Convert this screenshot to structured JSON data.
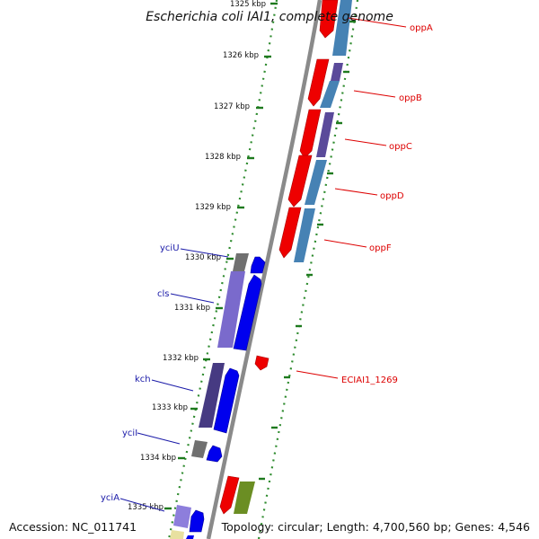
{
  "title": "Escherichia coli IAI1, complete genome",
  "accession": "Accession: NC_011741",
  "topology": "Topology: circular; Length: 4,700,560 bp; Genes: 4,546",
  "ticks": [
    "1325 kbp",
    "1326 kbp",
    "1327 kbp",
    "1328 kbp",
    "1329 kbp",
    "1330 kbp",
    "1331 kbp",
    "1332 kbp",
    "1333 kbp",
    "1334 kbp",
    "1335 kbp"
  ],
  "genes_right": [
    "oppA",
    "oppB",
    "oppC",
    "oppD",
    "oppF",
    "ECIAI1_1269"
  ],
  "genes_left": [
    "yciU",
    "cls",
    "kch",
    "yciI",
    "yciA"
  ],
  "colors": {
    "backbone": "#8a8a8a",
    "tick": "#1e7a1e",
    "forward_cds": "#ee0000",
    "cog_blue": "#4682b4",
    "reverse_cds": "#0000ee",
    "cog_purple": "#5a4a9a",
    "cog_gray": "#707070",
    "olive": "#6b8e23"
  }
}
